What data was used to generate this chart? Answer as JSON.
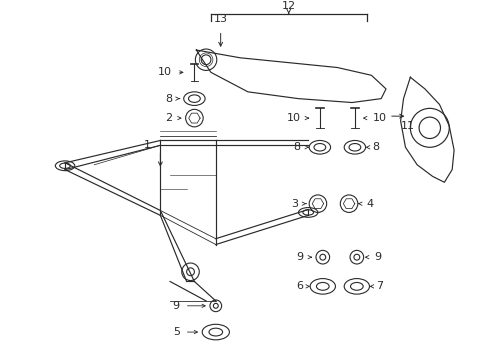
{
  "bg_color": "#ffffff",
  "fig_width": 4.89,
  "fig_height": 3.6,
  "dpi": 100,
  "frame_color": "#2a2a2a",
  "lw": 0.8
}
